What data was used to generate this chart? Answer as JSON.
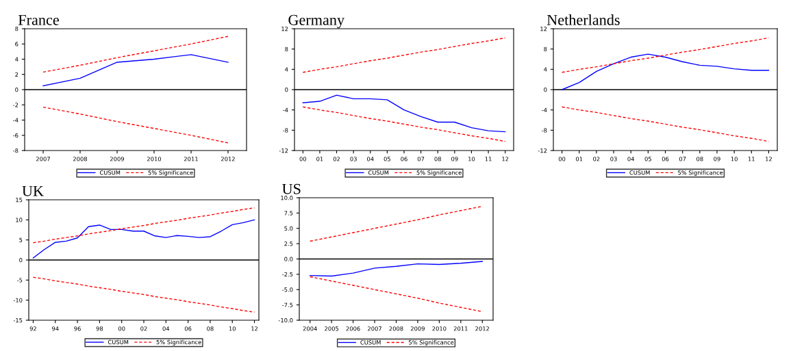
{
  "chart_data": [
    {
      "type": "line",
      "title": "France",
      "x": [
        2007,
        2008,
        2009,
        2010,
        2011,
        2012
      ],
      "xlim": [
        2006.5,
        2012.5
      ],
      "xticks": [
        2007,
        2008,
        2009,
        2010,
        2011,
        2012
      ],
      "ylim": [
        -8,
        8
      ],
      "yticks": [
        -8,
        -6,
        -4,
        -2,
        0,
        2,
        4,
        6,
        8
      ],
      "grid": false,
      "legend": "bottom",
      "marker": "none",
      "ref_lines": [
        {
          "axis": "y",
          "value": 0,
          "color": "#000000"
        }
      ],
      "series": [
        {
          "name": "CUSUM",
          "color": "#0000ff",
          "line_style": "solid",
          "values": [
            0.5,
            1.5,
            3.6,
            4.0,
            4.6,
            3.6
          ]
        },
        {
          "name": "5% Significance",
          "color": "#ff0000",
          "line_style": "dashed",
          "values": [
            2.3,
            3.2,
            4.2,
            5.1,
            6.0,
            7.0
          ]
        },
        {
          "color": "#ff0000",
          "line_style": "dashed",
          "values": [
            -2.3,
            -3.2,
            -4.2,
            -5.1,
            -6.0,
            -7.0
          ]
        }
      ]
    },
    {
      "type": "line",
      "title": "Germany",
      "x": [
        2000,
        2001,
        2002,
        2003,
        2004,
        2005,
        2006,
        2007,
        2008,
        2009,
        2010,
        2011,
        2012
      ],
      "xlim": [
        1999.5,
        2012.5
      ],
      "xticks": [
        {
          "value": 2000,
          "label": "00"
        },
        {
          "value": 2001,
          "label": "01"
        },
        {
          "value": 2002,
          "label": "02"
        },
        {
          "value": 2003,
          "label": "03"
        },
        {
          "value": 2004,
          "label": "04"
        },
        {
          "value": 2005,
          "label": "05"
        },
        {
          "value": 2006,
          "label": "06"
        },
        {
          "value": 2007,
          "label": "07"
        },
        {
          "value": 2008,
          "label": "08"
        },
        {
          "value": 2009,
          "label": "09"
        },
        {
          "value": 2010,
          "label": "10"
        },
        {
          "value": 2011,
          "label": "11"
        },
        {
          "value": 2012,
          "label": "12"
        }
      ],
      "ylim": [
        -12,
        12
      ],
      "yticks": [
        -12,
        -8,
        -4,
        0,
        4,
        8,
        12
      ],
      "grid": false,
      "legend": "bottom",
      "marker": "none",
      "ref_lines": [
        {
          "axis": "y",
          "value": 0,
          "color": "#000000"
        }
      ],
      "series": [
        {
          "name": "CUSUM",
          "color": "#0000ff",
          "line_style": "solid",
          "values": [
            -2.6,
            -2.3,
            -1.1,
            -1.8,
            -1.8,
            -2.0,
            -4.0,
            -5.3,
            -6.4,
            -6.4,
            -7.5,
            -8.1,
            -8.3
          ]
        },
        {
          "name": "5% Significance",
          "color": "#ff0000",
          "line_style": "dashed",
          "values": [
            3.4,
            4.0,
            4.5,
            5.1,
            5.7,
            6.2,
            6.8,
            7.4,
            7.9,
            8.5,
            9.1,
            9.6,
            10.2
          ]
        },
        {
          "color": "#ff0000",
          "line_style": "dashed",
          "values": [
            -3.4,
            -4.0,
            -4.5,
            -5.1,
            -5.7,
            -6.2,
            -6.8,
            -7.4,
            -7.9,
            -8.5,
            -9.1,
            -9.6,
            -10.2
          ]
        }
      ]
    },
    {
      "type": "line",
      "title": "Netherlands",
      "x": [
        2000,
        2001,
        2002,
        2003,
        2004,
        2005,
        2006,
        2007,
        2008,
        2009,
        2010,
        2011,
        2012
      ],
      "xlim": [
        1999.5,
        2012.5
      ],
      "xticks": [
        {
          "value": 2000,
          "label": "00"
        },
        {
          "value": 2001,
          "label": "01"
        },
        {
          "value": 2002,
          "label": "02"
        },
        {
          "value": 2003,
          "label": "03"
        },
        {
          "value": 2004,
          "label": "04"
        },
        {
          "value": 2005,
          "label": "05"
        },
        {
          "value": 2006,
          "label": "06"
        },
        {
          "value": 2007,
          "label": "07"
        },
        {
          "value": 2008,
          "label": "08"
        },
        {
          "value": 2009,
          "label": "09"
        },
        {
          "value": 2010,
          "label": "10"
        },
        {
          "value": 2011,
          "label": "11"
        },
        {
          "value": 2012,
          "label": "12"
        }
      ],
      "ylim": [
        -12,
        12
      ],
      "yticks": [
        -12,
        -8,
        -4,
        0,
        4,
        8,
        12
      ],
      "grid": false,
      "legend": "bottom",
      "marker": "none",
      "ref_lines": [
        {
          "axis": "y",
          "value": 0,
          "color": "#000000"
        }
      ],
      "series": [
        {
          "name": "CUSUM",
          "color": "#0000ff",
          "line_style": "solid",
          "values": [
            0.0,
            1.4,
            3.6,
            5.1,
            6.4,
            7.0,
            6.4,
            5.5,
            4.8,
            4.6,
            4.1,
            3.8,
            3.8
          ]
        },
        {
          "name": "5% Significance",
          "color": "#ff0000",
          "line_style": "dashed",
          "values": [
            3.4,
            4.0,
            4.5,
            5.1,
            5.7,
            6.2,
            6.8,
            7.4,
            7.9,
            8.5,
            9.1,
            9.6,
            10.2
          ]
        },
        {
          "color": "#ff0000",
          "line_style": "dashed",
          "values": [
            -3.4,
            -4.0,
            -4.5,
            -5.1,
            -5.7,
            -6.2,
            -6.8,
            -7.4,
            -7.9,
            -8.5,
            -9.1,
            -9.6,
            -10.2
          ]
        }
      ]
    },
    {
      "type": "line",
      "title": "UK",
      "x": [
        1992,
        1993,
        1994,
        1995,
        1996,
        1997,
        1998,
        1999,
        2000,
        2001,
        2002,
        2003,
        2004,
        2005,
        2006,
        2007,
        2008,
        2009,
        2010,
        2011,
        2012
      ],
      "xlim": [
        1991.6,
        2012.4
      ],
      "xticks": [
        {
          "value": 1992,
          "label": "92"
        },
        {
          "value": 1994,
          "label": "94"
        },
        {
          "value": 1996,
          "label": "96"
        },
        {
          "value": 1998,
          "label": "98"
        },
        {
          "value": 2000,
          "label": "00"
        },
        {
          "value": 2002,
          "label": "02"
        },
        {
          "value": 2004,
          "label": "04"
        },
        {
          "value": 2006,
          "label": "06"
        },
        {
          "value": 2008,
          "label": "08"
        },
        {
          "value": 2010,
          "label": "10"
        },
        {
          "value": 2012,
          "label": "12"
        }
      ],
      "ylim": [
        -15,
        15
      ],
      "yticks": [
        -15,
        -10,
        -5,
        0,
        5,
        10,
        15
      ],
      "grid": false,
      "legend": "bottom",
      "marker": "none",
      "ref_lines": [
        {
          "axis": "y",
          "value": 0,
          "color": "#000000"
        }
      ],
      "series": [
        {
          "name": "CUSUM",
          "color": "#0000ff",
          "line_style": "solid",
          "values": [
            0.5,
            2.6,
            4.4,
            4.7,
            5.5,
            8.3,
            8.7,
            7.6,
            7.6,
            7.2,
            7.2,
            6.0,
            5.6,
            6.1,
            5.9,
            5.6,
            5.8,
            7.2,
            8.8,
            9.3,
            10.0
          ]
        },
        {
          "name": "5% Significance",
          "color": "#ff0000",
          "line_style": "dashed",
          "values": [
            4.3,
            4.7,
            5.2,
            5.6,
            6.0,
            6.5,
            6.9,
            7.3,
            7.8,
            8.2,
            8.6,
            9.1,
            9.5,
            9.9,
            10.4,
            10.8,
            11.2,
            11.7,
            12.1,
            12.6,
            13.0
          ]
        },
        {
          "color": "#ff0000",
          "line_style": "dashed",
          "values": [
            -4.3,
            -4.7,
            -5.2,
            -5.6,
            -6.0,
            -6.5,
            -6.9,
            -7.3,
            -7.8,
            -8.2,
            -8.6,
            -9.1,
            -9.5,
            -9.9,
            -10.4,
            -10.8,
            -11.2,
            -11.7,
            -12.1,
            -12.6,
            -13.0
          ]
        }
      ]
    },
    {
      "type": "line",
      "title": "US",
      "x": [
        2004,
        2005,
        2006,
        2007,
        2008,
        2009,
        2010,
        2011,
        2012
      ],
      "xlim": [
        2003.5,
        2012.5
      ],
      "xticks": [
        2004,
        2005,
        2006,
        2007,
        2008,
        2009,
        2010,
        2011,
        2012
      ],
      "ylim": [
        -10,
        10
      ],
      "yticks": [
        {
          "value": -10,
          "label": "-10.0"
        },
        {
          "value": -7.5,
          "label": "-7.5"
        },
        {
          "value": -5,
          "label": "-5.0"
        },
        {
          "value": -2.5,
          "label": "-2.5"
        },
        {
          "value": 0,
          "label": "0.0"
        },
        {
          "value": 2.5,
          "label": "2.5"
        },
        {
          "value": 5,
          "label": "5.0"
        },
        {
          "value": 7.5,
          "label": "7.5"
        },
        {
          "value": 10,
          "label": "10.0"
        }
      ],
      "grid": false,
      "legend": "bottom",
      "marker": "none",
      "ref_lines": [
        {
          "axis": "y",
          "value": 0,
          "color": "#000000"
        }
      ],
      "series": [
        {
          "name": "CUSUM",
          "color": "#0000ff",
          "line_style": "solid",
          "values": [
            -2.7,
            -2.8,
            -2.3,
            -1.5,
            -1.2,
            -0.8,
            -0.9,
            -0.7,
            -0.4
          ]
        },
        {
          "name": "5% Significance",
          "color": "#ff0000",
          "line_style": "dashed",
          "values": [
            2.9,
            3.6,
            4.3,
            5.0,
            5.7,
            6.4,
            7.2,
            7.9,
            8.6
          ]
        },
        {
          "color": "#ff0000",
          "line_style": "dashed",
          "values": [
            -2.9,
            -3.6,
            -4.3,
            -5.0,
            -5.7,
            -6.4,
            -7.2,
            -7.9,
            -8.6
          ]
        }
      ]
    }
  ]
}
